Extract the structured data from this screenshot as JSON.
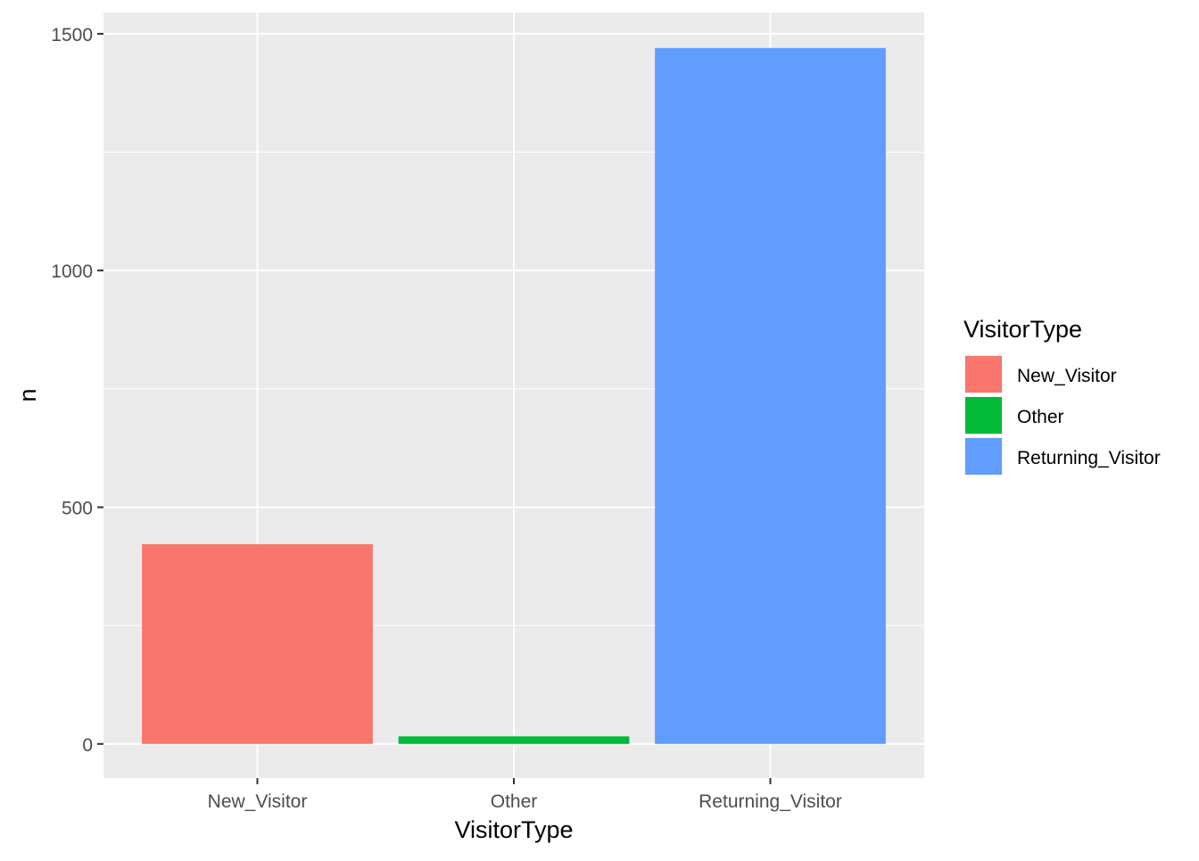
{
  "chart_data": {
    "type": "bar",
    "categories": [
      "New_Visitor",
      "Other",
      "Returning_Visitor"
    ],
    "values": [
      422,
      16,
      1470
    ],
    "colors": [
      "#F8766D",
      "#00BA38",
      "#619CFF"
    ],
    "xlabel": "VisitorType",
    "ylabel": "n",
    "ylim": [
      -72,
      1545
    ],
    "yticks": [
      0,
      500,
      1000,
      1500
    ],
    "ytick_labels": [
      "0",
      "500",
      "1000",
      "1500"
    ],
    "grid": true,
    "panel_background": "#EBEBEB",
    "legend": {
      "title": "VisitorType",
      "position": "right",
      "entries": [
        "New_Visitor",
        "Other",
        "Returning_Visitor"
      ]
    }
  }
}
